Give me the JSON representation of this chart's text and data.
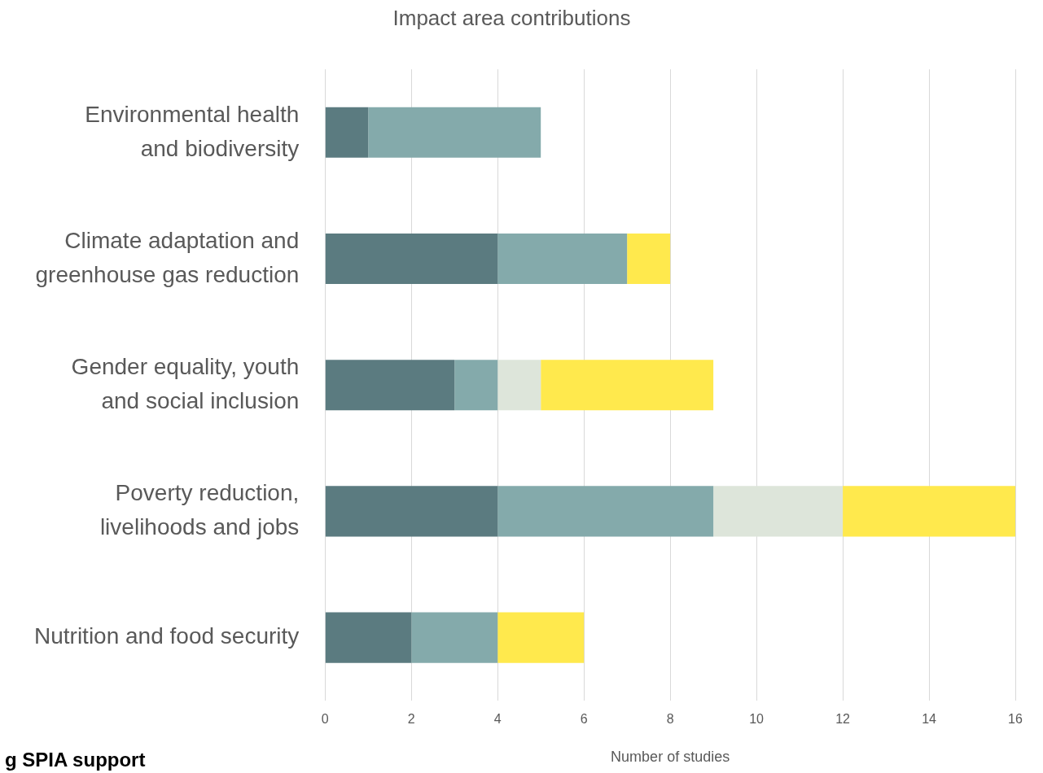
{
  "chart_data": {
    "type": "bar",
    "orientation": "horizontal",
    "stacked": true,
    "title": "Impact area contributions",
    "xlabel": "Number of studies",
    "categories": [
      "Environmental health and biodiversity",
      "Climate adaptation and greenhouse gas reduction",
      "Gender equality, youth and social inclusion",
      "Poverty reduction, livelihoods and jobs",
      "Nutrition and food security"
    ],
    "series": [
      {
        "color": "#5b7b80",
        "values": [
          1,
          4,
          3,
          4,
          2
        ]
      },
      {
        "color": "#84aaab",
        "values": [
          4,
          3,
          1,
          5,
          2
        ]
      },
      {
        "color": "#dde5da",
        "values": [
          0,
          0,
          1,
          3,
          0
        ]
      },
      {
        "color": "#ffe94d",
        "values": [
          0,
          1,
          4,
          4,
          2
        ]
      }
    ],
    "xlim": [
      0,
      16
    ],
    "xticks": [
      0,
      2,
      4,
      6,
      8,
      10,
      12,
      14,
      16
    ],
    "grid": "x",
    "legend": false,
    "annotations": [
      "g SPIA support"
    ]
  }
}
